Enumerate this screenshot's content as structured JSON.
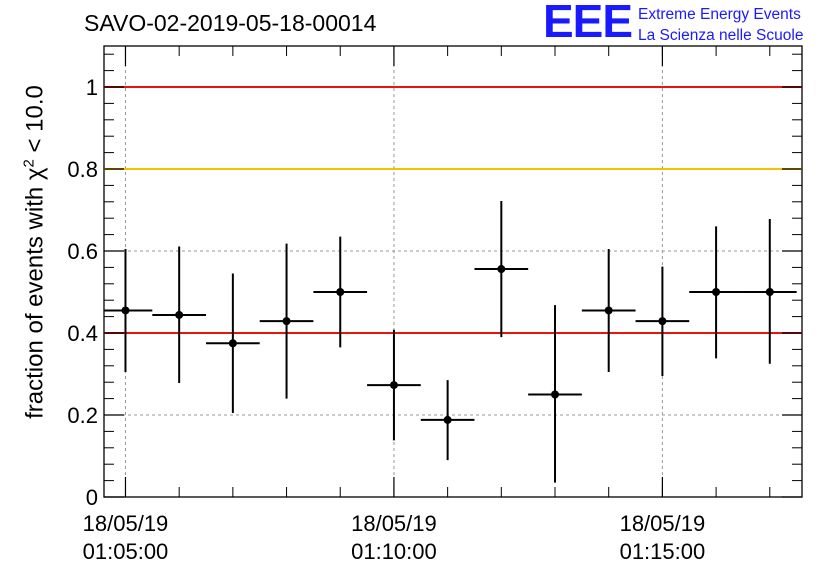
{
  "title": "SAVO-02-2019-05-18-00014",
  "logo": {
    "mark": "EEE",
    "line1": "Extreme Energy Events",
    "line2": "La Scienza nelle Scuole"
  },
  "chart_data": {
    "type": "scatter",
    "ylabel_prefix": "fraction of events with χ",
    "ylabel_sup": "2",
    "ylabel_suffix": " < 10.0",
    "ylim": [
      0,
      1.1
    ],
    "yticks": [
      0,
      0.2,
      0.4,
      0.6,
      0.8,
      1
    ],
    "ytick_labels": [
      "0",
      "0.2",
      "0.4",
      "0.6",
      "0.8",
      "1"
    ],
    "xlim": [
      "01:04:36",
      "01:17:36"
    ],
    "xticks": [
      {
        "t": "01:05:00",
        "date": "18/05/19",
        "time": "01:05:00"
      },
      {
        "t": "01:10:00",
        "date": "18/05/19",
        "time": "01:10:00"
      },
      {
        "t": "01:15:00",
        "date": "18/05/19",
        "time": "01:15:00"
      }
    ],
    "grid": true,
    "reference_lines": [
      {
        "y": 1.0,
        "color": "#e8150f"
      },
      {
        "y": 0.8,
        "color": "#f5c000"
      },
      {
        "y": 0.4,
        "color": "#e8150f"
      }
    ],
    "points": [
      {
        "x": "01:05:00",
        "xerr_s": 30,
        "y": 0.455,
        "y_low": 0.305,
        "y_high": 0.605
      },
      {
        "x": "01:06:00",
        "xerr_s": 30,
        "y": 0.444,
        "y_low": 0.278,
        "y_high": 0.611
      },
      {
        "x": "01:07:00",
        "xerr_s": 30,
        "y": 0.375,
        "y_low": 0.205,
        "y_high": 0.545
      },
      {
        "x": "01:08:00",
        "xerr_s": 30,
        "y": 0.429,
        "y_low": 0.24,
        "y_high": 0.618
      },
      {
        "x": "01:09:00",
        "xerr_s": 30,
        "y": 0.5,
        "y_low": 0.365,
        "y_high": 0.635
      },
      {
        "x": "01:10:00",
        "xerr_s": 30,
        "y": 0.273,
        "y_low": 0.138,
        "y_high": 0.408
      },
      {
        "x": "01:11:00",
        "xerr_s": 30,
        "y": 0.188,
        "y_low": 0.09,
        "y_high": 0.285
      },
      {
        "x": "01:12:00",
        "xerr_s": 30,
        "y": 0.556,
        "y_low": 0.39,
        "y_high": 0.722
      },
      {
        "x": "01:13:00",
        "xerr_s": 30,
        "y": 0.25,
        "y_low": 0.035,
        "y_high": 0.468
      },
      {
        "x": "01:14:00",
        "xerr_s": 30,
        "y": 0.455,
        "y_low": 0.305,
        "y_high": 0.605
      },
      {
        "x": "01:15:00",
        "xerr_s": 30,
        "y": 0.429,
        "y_low": 0.295,
        "y_high": 0.562
      },
      {
        "x": "01:16:00",
        "xerr_s": 30,
        "y": 0.5,
        "y_low": 0.338,
        "y_high": 0.66
      },
      {
        "x": "01:17:00",
        "xerr_s": 30,
        "y": 0.5,
        "y_low": 0.325,
        "y_high": 0.678
      }
    ]
  }
}
